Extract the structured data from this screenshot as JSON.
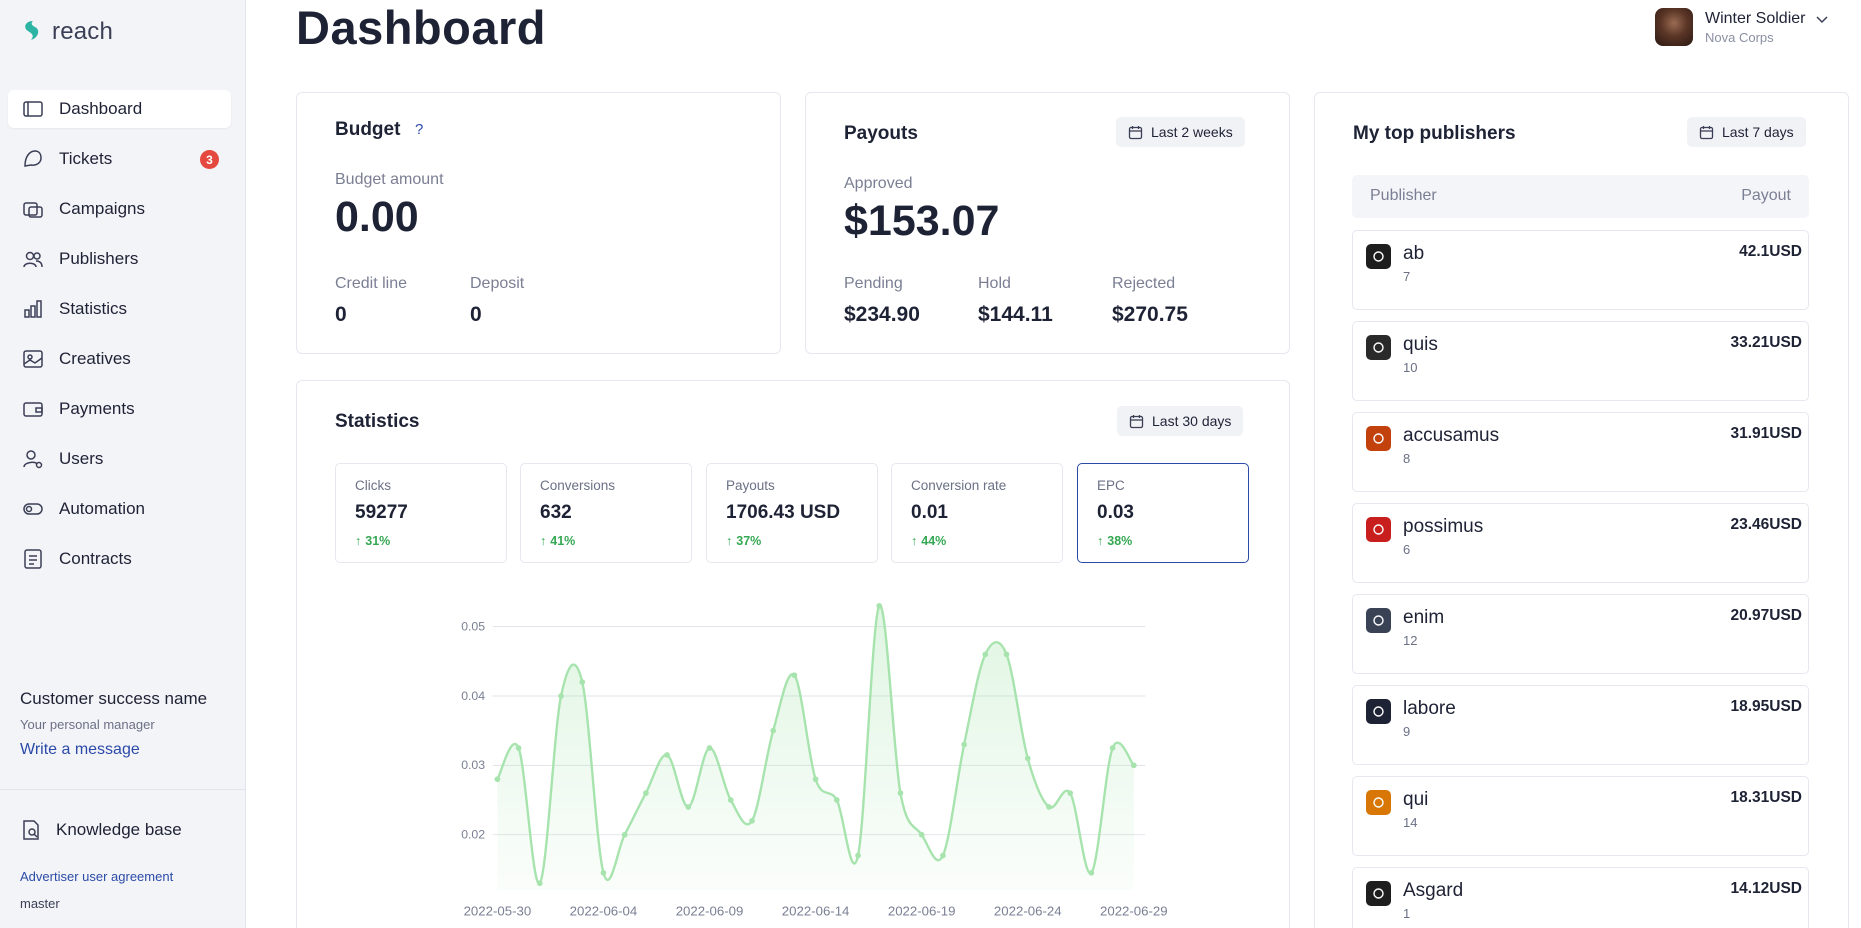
{
  "app": {
    "name": "reach"
  },
  "sidebar": {
    "items": [
      {
        "label": "Dashboard",
        "icon": "dashboard-icon",
        "active": true
      },
      {
        "label": "Tickets",
        "icon": "tickets-icon",
        "badge": "3"
      },
      {
        "label": "Campaigns",
        "icon": "campaigns-icon"
      },
      {
        "label": "Publishers",
        "icon": "publishers-icon"
      },
      {
        "label": "Statistics",
        "icon": "statistics-icon"
      },
      {
        "label": "Creatives",
        "icon": "creatives-icon"
      },
      {
        "label": "Payments",
        "icon": "payments-icon"
      },
      {
        "label": "Users",
        "icon": "users-icon"
      },
      {
        "label": "Automation",
        "icon": "automation-icon"
      },
      {
        "label": "Contracts",
        "icon": "contracts-icon"
      }
    ],
    "manager": {
      "name": "Customer success name",
      "role": "Your personal manager",
      "link": "Write a message"
    },
    "knowledge_base": "Knowledge base",
    "agreement": "Advertiser user agreement",
    "version": "master"
  },
  "header": {
    "title": "Dashboard",
    "user": {
      "name": "Winter Soldier",
      "org": "Nova Corps"
    }
  },
  "budget": {
    "title": "Budget",
    "help": "?",
    "amount_label": "Budget amount",
    "amount": "0.00",
    "credit_label": "Credit line",
    "credit": "0",
    "deposit_label": "Deposit",
    "deposit": "0"
  },
  "payouts": {
    "title": "Payouts",
    "range": "Last 2 weeks",
    "approved_label": "Approved",
    "approved": "$153.07",
    "pending_label": "Pending",
    "pending": "$234.90",
    "hold_label": "Hold",
    "hold": "$144.11",
    "rejected_label": "Rejected",
    "rejected": "$270.75"
  },
  "statistics": {
    "title": "Statistics",
    "range": "Last 30 days",
    "tiles": [
      {
        "name": "Clicks",
        "value": "59277",
        "change": "31%"
      },
      {
        "name": "Conversions",
        "value": "632",
        "change": "41%"
      },
      {
        "name": "Payouts",
        "value": "1706.43 USD",
        "change": "37%"
      },
      {
        "name": "Conversion rate",
        "value": "0.01",
        "change": "44%"
      },
      {
        "name": "EPC",
        "value": "0.03",
        "change": "38%",
        "active": true
      }
    ]
  },
  "publishers": {
    "title": "My top publishers",
    "range": "Last 7 days",
    "col_publisher": "Publisher",
    "col_payout": "Payout",
    "rows": [
      {
        "name": "ab",
        "count": "7",
        "payout": "42.1USD",
        "color": "#1e1e1e"
      },
      {
        "name": "quis",
        "count": "10",
        "payout": "33.21USD",
        "color": "#2a2a2a"
      },
      {
        "name": "accusamus",
        "count": "8",
        "payout": "31.91USD",
        "color": "#c2410c"
      },
      {
        "name": "possimus",
        "count": "6",
        "payout": "23.46USD",
        "color": "#c81e1e"
      },
      {
        "name": "enim",
        "count": "12",
        "payout": "20.97USD",
        "color": "#3a4256"
      },
      {
        "name": "labore",
        "count": "9",
        "payout": "18.95USD",
        "color": "#1e2235"
      },
      {
        "name": "qui",
        "count": "14",
        "payout": "18.31USD",
        "color": "#d97706"
      },
      {
        "name": "Asgard",
        "count": "1",
        "payout": "14.12USD",
        "color": "#1e1e1e"
      }
    ]
  },
  "chart_data": {
    "type": "area",
    "title": "",
    "xlabel": "",
    "ylabel": "",
    "ylim": [
      0.012,
      0.054
    ],
    "yticks": [
      0.02,
      0.03,
      0.04,
      0.05
    ],
    "ytick_labels": [
      "0.02",
      "0.03",
      "0.04",
      "0.05"
    ],
    "xtick_labels": [
      "2022-05-30",
      "2022-06-04",
      "2022-06-09",
      "2022-06-14",
      "2022-06-19",
      "2022-06-24",
      "2022-06-29"
    ],
    "x": [
      "2022-05-30",
      "2022-05-31",
      "2022-06-01",
      "2022-06-02",
      "2022-06-03",
      "2022-06-04",
      "2022-06-05",
      "2022-06-06",
      "2022-06-07",
      "2022-06-08",
      "2022-06-09",
      "2022-06-10",
      "2022-06-11",
      "2022-06-12",
      "2022-06-13",
      "2022-06-14",
      "2022-06-15",
      "2022-06-16",
      "2022-06-17",
      "2022-06-18",
      "2022-06-19",
      "2022-06-20",
      "2022-06-21",
      "2022-06-22",
      "2022-06-23",
      "2022-06-24",
      "2022-06-25",
      "2022-06-26",
      "2022-06-27",
      "2022-06-28",
      "2022-06-29"
    ],
    "values": [
      0.028,
      0.0325,
      0.013,
      0.04,
      0.042,
      0.0145,
      0.02,
      0.026,
      0.0315,
      0.024,
      0.0325,
      0.025,
      0.022,
      0.035,
      0.043,
      0.028,
      0.025,
      0.017,
      0.053,
      0.026,
      0.02,
      0.017,
      0.033,
      0.046,
      0.046,
      0.031,
      0.024,
      0.026,
      0.0145,
      0.0325,
      0.03
    ],
    "color": "#a6e3ad"
  }
}
